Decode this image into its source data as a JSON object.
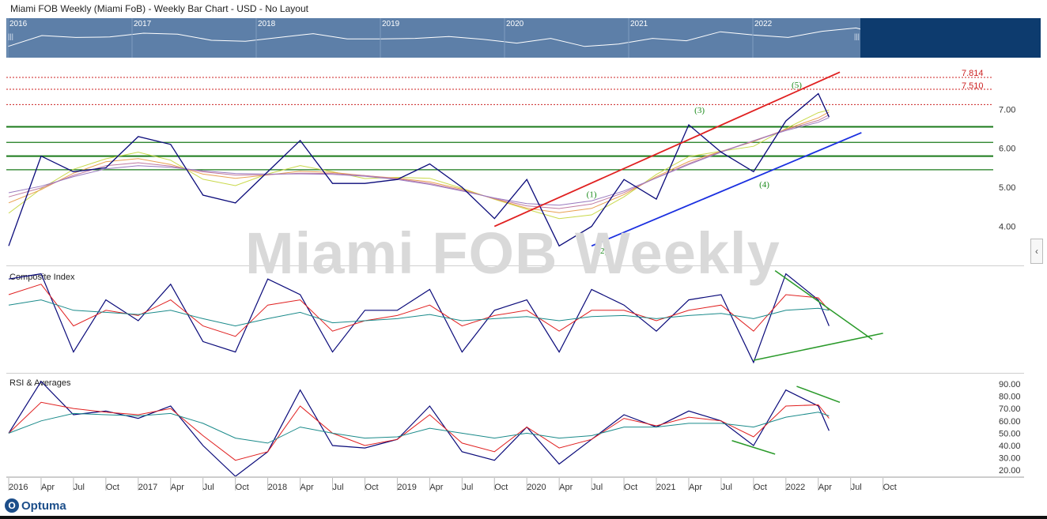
{
  "header": {
    "title": "Miami FOB Weekly (Miami FoB) - Weekly Bar Chart - USD - No Layout"
  },
  "navigator": {
    "years": [
      "2016",
      "2017",
      "2018",
      "2019",
      "2020",
      "2021",
      "2022"
    ],
    "grip": "|||"
  },
  "watermark": "Miami FOB Weekly",
  "panels": {
    "composite_label": "Composite Index",
    "rsi_label": "RSI & Averages"
  },
  "collapse_glyph": "‹",
  "brand": {
    "logo_text": "Optuma",
    "logo_mark": "O"
  },
  "colors": {
    "price": "#0a0a7a",
    "trend_up": "#e02020",
    "trend_support": "#1a2fe0",
    "level": "#1a7a1a",
    "dotted": "#cc2222",
    "ma_red": "#e02020",
    "ma_teal": "#1a8a8a",
    "nav_bg": "#5d7fa8",
    "nav_dark": "#0d3b6e"
  },
  "chart_data": [
    {
      "type": "line",
      "title": "Miami FOB Weekly (Miami FoB) - Weekly Bar Chart - USD",
      "x": [
        "2016-01",
        "2016-04",
        "2016-07",
        "2016-10",
        "2017-01",
        "2017-04",
        "2017-07",
        "2017-10",
        "2018-01",
        "2018-04",
        "2018-07",
        "2018-10",
        "2019-01",
        "2019-04",
        "2019-07",
        "2019-10",
        "2020-01",
        "2020-04",
        "2020-07",
        "2020-10",
        "2021-01",
        "2021-04",
        "2021-07",
        "2021-10",
        "2022-01",
        "2022-04",
        "2022-05"
      ],
      "series": [
        {
          "values": [
            3.5,
            5.8,
            5.4,
            5.5,
            6.3,
            6.1,
            4.8,
            4.6,
            5.4,
            6.2,
            5.1,
            5.1,
            5.2,
            5.6,
            5.0,
            4.2,
            5.2,
            3.5,
            4.0,
            5.2,
            4.7,
            6.6,
            5.9,
            5.4,
            6.7,
            7.4,
            6.8
          ]
        }
      ],
      "yticks": [
        "4.00",
        "5.00",
        "6.00",
        "7.00"
      ],
      "ylim": [
        3.0,
        8.3
      ],
      "horizontal_levels": [
        6.55,
        6.15,
        5.8,
        5.45
      ],
      "dotted_levels": [
        7.814,
        7.51,
        7.12
      ],
      "level_labels": [
        "7.814",
        "7.510"
      ],
      "trendlines": [
        {
          "from": [
            "2019-10",
            4.0
          ],
          "to": [
            "2022-06",
            7.95
          ]
        },
        {
          "from": [
            "2020-07",
            3.5
          ],
          "to": [
            "2022-08",
            6.4
          ]
        }
      ],
      "wave_labels": [
        {
          "label": "(1)",
          "x": "2020-07",
          "y": 4.75
        },
        {
          "label": "(2)",
          "x": "2020-08",
          "y": 3.3
        },
        {
          "label": "(3)",
          "x": "2021-05",
          "y": 6.9
        },
        {
          "label": "(4)",
          "x": "2021-11",
          "y": 5.0
        },
        {
          "label": "(5)",
          "x": "2022-02",
          "y": 7.55
        }
      ]
    },
    {
      "type": "line",
      "title": "Composite Index",
      "x": [
        "2016-01",
        "2016-04",
        "2016-07",
        "2016-10",
        "2017-01",
        "2017-04",
        "2017-07",
        "2017-10",
        "2018-01",
        "2018-04",
        "2018-07",
        "2018-10",
        "2019-01",
        "2019-04",
        "2019-07",
        "2019-10",
        "2020-01",
        "2020-04",
        "2020-07",
        "2020-10",
        "2021-01",
        "2021-04",
        "2021-07",
        "2021-10",
        "2022-01",
        "2022-04",
        "2022-05"
      ],
      "series": [
        {
          "values": [
            90,
            95,
            20,
            70,
            50,
            85,
            30,
            20,
            90,
            75,
            20,
            60,
            60,
            80,
            20,
            60,
            70,
            20,
            80,
            65,
            40,
            70,
            75,
            10,
            95,
            70,
            45
          ]
        },
        {
          "values": [
            75,
            85,
            45,
            60,
            55,
            70,
            45,
            35,
            65,
            70,
            40,
            50,
            55,
            65,
            45,
            55,
            60,
            40,
            60,
            60,
            50,
            60,
            65,
            40,
            75,
            72,
            60
          ]
        },
        {
          "values": [
            65,
            70,
            60,
            58,
            56,
            60,
            52,
            45,
            52,
            58,
            48,
            50,
            52,
            56,
            50,
            52,
            54,
            50,
            54,
            55,
            52,
            55,
            57,
            52,
            60,
            62,
            60
          ]
        }
      ],
      "trendlines": [
        {
          "from": [
            "2021-10",
            12
          ],
          "to": [
            "2022-10",
            38
          ]
        },
        {
          "from": [
            "2021-12",
            98
          ],
          "to": [
            "2022-09",
            32
          ]
        }
      ]
    },
    {
      "type": "line",
      "title": "RSI & Averages",
      "x": [
        "2016-01",
        "2016-04",
        "2016-07",
        "2016-10",
        "2017-01",
        "2017-04",
        "2017-07",
        "2017-10",
        "2018-01",
        "2018-04",
        "2018-07",
        "2018-10",
        "2019-01",
        "2019-04",
        "2019-07",
        "2019-10",
        "2020-01",
        "2020-04",
        "2020-07",
        "2020-10",
        "2021-01",
        "2021-04",
        "2021-07",
        "2021-10",
        "2022-01",
        "2022-04",
        "2022-05"
      ],
      "series": [
        {
          "values": [
            50,
            92,
            65,
            68,
            62,
            72,
            40,
            15,
            35,
            85,
            40,
            38,
            45,
            72,
            35,
            28,
            55,
            25,
            45,
            65,
            55,
            68,
            60,
            40,
            85,
            72,
            52
          ]
        },
        {
          "values": [
            50,
            75,
            70,
            67,
            65,
            70,
            48,
            28,
            35,
            72,
            50,
            40,
            45,
            65,
            42,
            35,
            55,
            38,
            45,
            62,
            56,
            63,
            60,
            47,
            72,
            73,
            62
          ]
        },
        {
          "values": [
            50,
            60,
            66,
            65,
            64,
            66,
            58,
            46,
            42,
            55,
            50,
            46,
            47,
            54,
            50,
            46,
            50,
            46,
            48,
            55,
            55,
            58,
            58,
            55,
            63,
            67,
            64
          ]
        }
      ],
      "yticks": [
        "20.00",
        "30.00",
        "40.00",
        "50.00",
        "60.00",
        "70.00",
        "80.00",
        "90.00"
      ],
      "ylim": [
        15,
        97
      ],
      "trendlines": [
        {
          "from": [
            "2021-08",
            44
          ],
          "to": [
            "2021-12",
            33
          ]
        },
        {
          "from": [
            "2022-02",
            88
          ],
          "to": [
            "2022-06",
            75
          ]
        }
      ]
    }
  ],
  "time_axis": {
    "labels": [
      "2016",
      "Apr",
      "Jul",
      "Oct",
      "2017",
      "Apr",
      "Jul",
      "Oct",
      "2018",
      "Apr",
      "Jul",
      "Oct",
      "2019",
      "Apr",
      "Jul",
      "Oct",
      "2020",
      "Apr",
      "Jul",
      "Oct",
      "2021",
      "Apr",
      "Jul",
      "Oct",
      "2022",
      "Apr",
      "Jul",
      "Oct"
    ]
  }
}
